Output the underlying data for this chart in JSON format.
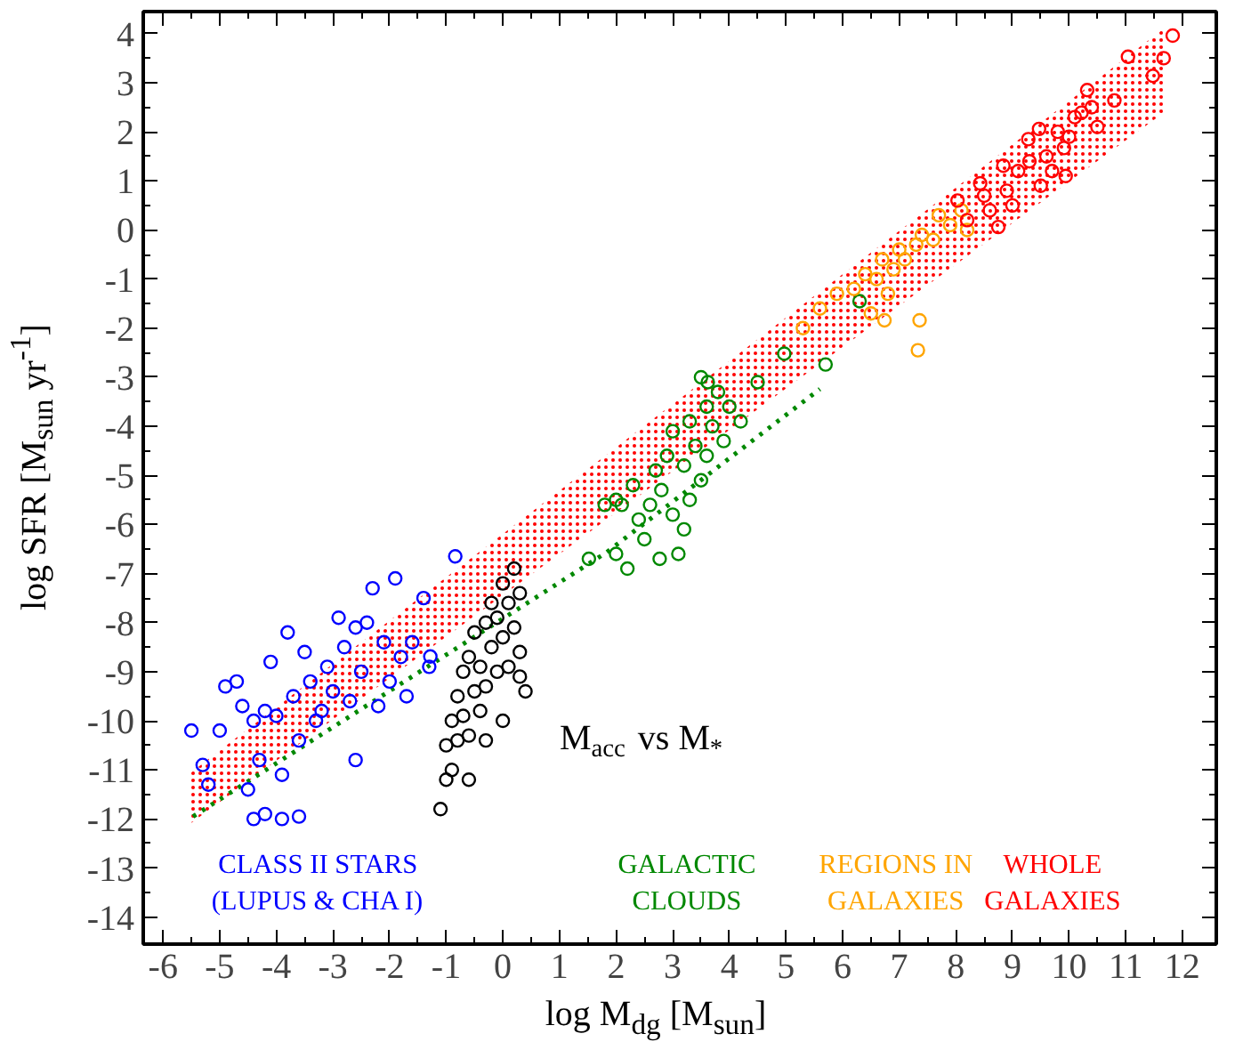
{
  "chart_data": {
    "type": "scatter",
    "xlabel": "log M$_{dg}$ [M$_{sun}$]",
    "ylabel": "log SFR [M$_{sun}$ yr$^{-1}$]",
    "xlim": [
      -6.35,
      12.6
    ],
    "ylim": [
      -14.55,
      4.45
    ],
    "xticks": [
      -6,
      -5,
      -4,
      -3,
      -2,
      -1,
      0,
      1,
      2,
      3,
      4,
      5,
      6,
      7,
      8,
      9,
      10,
      11,
      12
    ],
    "yticks": [
      -14,
      -13,
      -12,
      -11,
      -10,
      -9,
      -8,
      -7,
      -6,
      -5,
      -4,
      -3,
      -2,
      -1,
      0,
      1,
      2,
      3,
      4
    ],
    "marker": "circle",
    "annotations": [
      "M$_{acc}$ vs M$_{*}$"
    ],
    "series": [
      {
        "type": "line",
        "color": "#ff0000",
        "marker": "none",
        "x": [
          -5.56,
          11.67
        ],
        "values": [
          null,
          null
        ],
        "lower": [
          -12.13,
          2.39
        ],
        "upper": [
          -11.1,
          4.1
        ]
      },
      {
        "type": "line",
        "color": "#008800",
        "line_style": "dotted",
        "marker": "none",
        "x": [
          -5.47,
          1.83,
          5.6
        ],
        "values": [
          -11.95,
          -6.57,
          -3.24
        ]
      },
      {
        "name": "CLASS II STARS\n(LUPUS & CHA I)",
        "color": "#0000ff",
        "x": [
          -5.5,
          -5.3,
          -5.2,
          -5.0,
          -4.9,
          -4.7,
          -4.6,
          -4.5,
          -4.4,
          -4.3,
          -4.2,
          -4.1,
          -4.0,
          -3.9,
          -3.8,
          -3.7,
          -3.6,
          -3.5,
          -3.4,
          -3.3,
          -3.2,
          -3.1,
          -3.0,
          -2.9,
          -2.8,
          -2.7,
          -2.6,
          -2.5,
          -2.4,
          -2.3,
          -2.2,
          -2.1,
          -2.0,
          -1.9,
          -1.8,
          -1.7,
          -1.6,
          -1.4,
          -1.3,
          -0.84,
          -3.9,
          -2.6,
          -3.6,
          -4.4,
          -4.2,
          -1.28
        ],
        "values": [
          -10.2,
          -10.9,
          -11.3,
          -10.2,
          -9.3,
          -9.2,
          -9.7,
          -11.4,
          -10.0,
          -10.8,
          -9.8,
          -8.8,
          -9.9,
          -11.1,
          -8.2,
          -9.5,
          -10.4,
          -8.6,
          -9.2,
          -10.0,
          -9.8,
          -8.9,
          -9.4,
          -7.9,
          -8.5,
          -9.6,
          -8.1,
          -9.0,
          -8.0,
          -7.3,
          -9.7,
          -8.4,
          -9.2,
          -7.1,
          -8.7,
          -9.5,
          -8.4,
          -7.5,
          -8.9,
          -6.65,
          -12.0,
          -10.8,
          -11.95,
          -12.0,
          -11.9,
          -8.69
        ]
      },
      {
        "color": "#000000",
        "x": [
          -1.1,
          -1.0,
          -1.0,
          -0.9,
          -0.9,
          -0.8,
          -0.8,
          -0.7,
          -0.7,
          -0.6,
          -0.6,
          -0.5,
          -0.5,
          -0.4,
          -0.4,
          -0.3,
          -0.3,
          -0.2,
          -0.2,
          -0.1,
          -0.1,
          0.0,
          0.0,
          0.1,
          0.1,
          0.2,
          0.2,
          0.3,
          0.3,
          0.4,
          -0.6,
          -0.3,
          0.0,
          0.3
        ],
        "values": [
          -11.8,
          -11.2,
          -10.5,
          -11.0,
          -10.0,
          -10.4,
          -9.5,
          -9.9,
          -9.0,
          -10.3,
          -8.7,
          -9.4,
          -8.2,
          -9.8,
          -8.9,
          -8.0,
          -9.3,
          -8.5,
          -7.6,
          -9.0,
          -7.9,
          -8.3,
          -7.2,
          -8.9,
          -7.6,
          -8.1,
          -6.9,
          -8.6,
          -7.4,
          -9.4,
          -11.2,
          -10.4,
          -10.0,
          -9.1
        ]
      },
      {
        "name": "GALACTIC\nCLOUDS",
        "color": "#008800",
        "x": [
          1.52,
          1.8,
          2.0,
          2.1,
          2.3,
          2.0,
          2.2,
          2.5,
          2.6,
          2.77,
          2.7,
          2.8,
          2.9,
          3.0,
          3.0,
          3.1,
          3.2,
          3.3,
          3.3,
          3.4,
          3.5,
          3.6,
          3.6,
          3.7,
          3.8,
          3.9,
          4.0,
          3.5,
          3.62,
          4.5,
          4.97,
          5.7,
          6.3,
          3.2,
          2.4,
          4.2
        ],
        "values": [
          -6.7,
          -5.6,
          -5.5,
          -5.6,
          -5.2,
          -6.6,
          -6.9,
          -6.3,
          -5.6,
          -6.7,
          -4.9,
          -5.3,
          -4.6,
          -5.8,
          -4.1,
          -6.6,
          -4.8,
          -3.9,
          -5.5,
          -4.4,
          -5.1,
          -3.6,
          -4.6,
          -4.0,
          -3.3,
          -4.3,
          -3.6,
          -3.0,
          -3.1,
          -3.1,
          -2.52,
          -2.74,
          -1.45,
          -6.1,
          -5.9,
          -3.9
        ]
      },
      {
        "name": "REGIONS IN\nGALAXIES",
        "color": "#ffa500",
        "x": [
          5.3,
          5.6,
          5.9,
          6.2,
          6.4,
          6.6,
          6.7,
          6.9,
          7.0,
          7.1,
          7.3,
          7.4,
          7.6,
          7.7,
          7.9,
          8.1,
          8.2,
          6.8,
          6.5,
          6.74,
          7.36,
          7.33
        ],
        "values": [
          -2.0,
          -1.6,
          -1.3,
          -1.2,
          -0.9,
          -1.0,
          -0.6,
          -0.8,
          -0.4,
          -0.6,
          -0.3,
          -0.1,
          -0.2,
          0.3,
          0.1,
          0.4,
          0.0,
          -1.3,
          -1.7,
          -1.84,
          -1.84,
          -2.45
        ]
      },
      {
        "name": "WHOLE\nGALAXIES",
        "color": "#ff0000",
        "x": [
          8.03,
          8.75,
          9.94,
          10.8,
          11.83,
          11.67,
          11.04,
          11.48,
          10.32,
          9.47,
          9.28,
          8.43,
          8.84,
          9.91,
          10.22,
          8.2,
          8.6,
          8.9,
          9.1,
          9.3,
          9.6,
          9.8,
          10.0,
          10.1,
          10.4,
          10.5,
          9.0,
          8.5,
          9.5,
          9.7
        ],
        "values": [
          0.6,
          0.06,
          1.1,
          2.64,
          3.96,
          3.5,
          3.53,
          3.14,
          2.85,
          2.06,
          1.85,
          0.95,
          1.31,
          1.67,
          2.39,
          0.2,
          0.4,
          0.8,
          1.2,
          1.4,
          1.5,
          2.0,
          1.9,
          2.3,
          2.5,
          2.1,
          0.5,
          0.7,
          0.9,
          1.2
        ]
      }
    ]
  }
}
